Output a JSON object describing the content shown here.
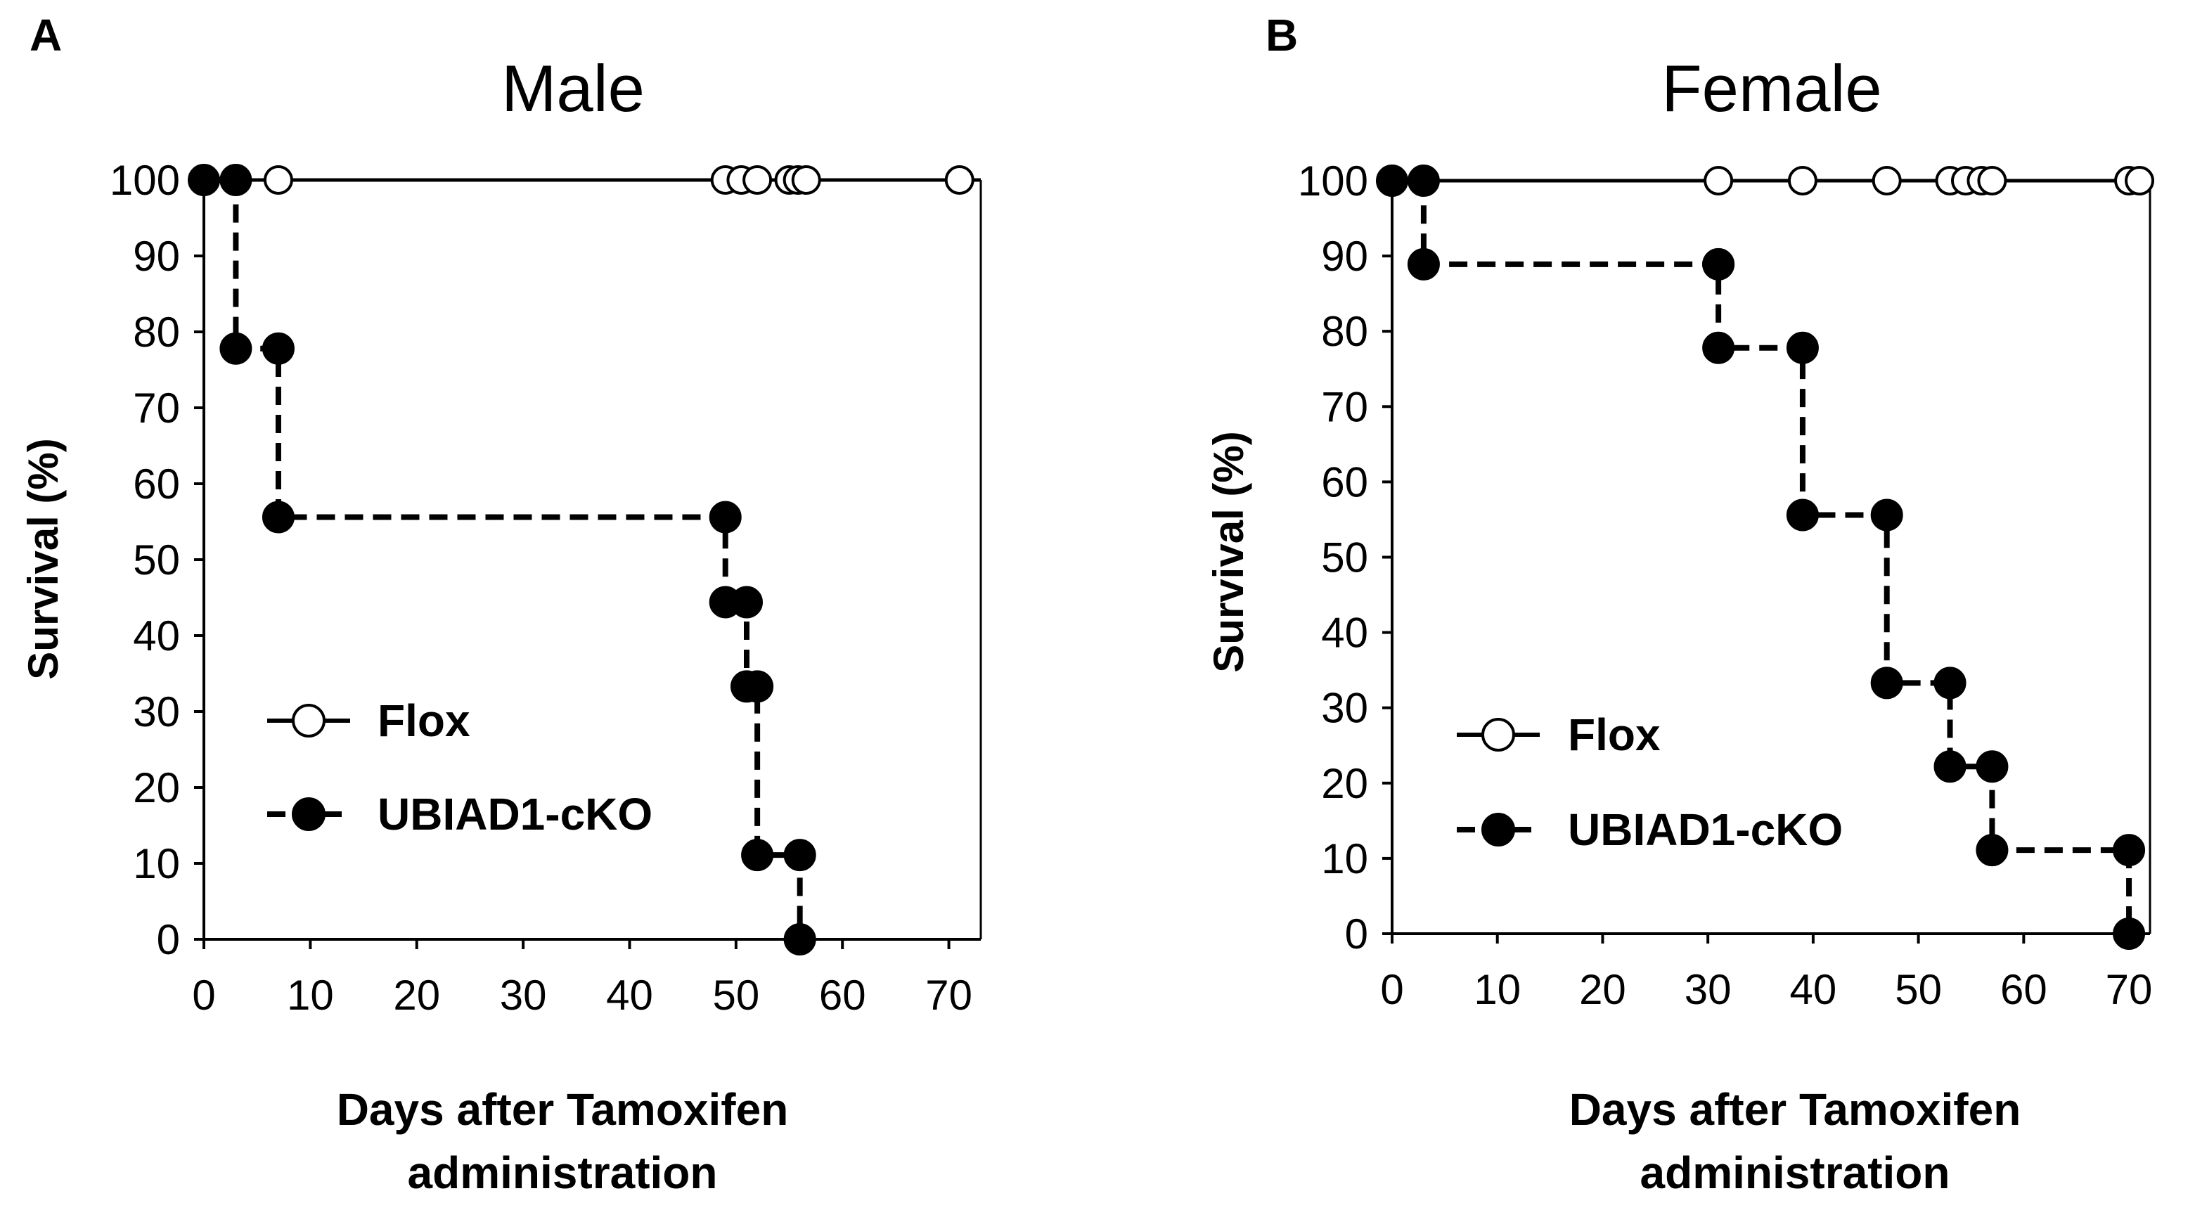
{
  "chart_data": [
    {
      "type": "line",
      "subtype": "kaplan-meier",
      "panel_label": "A",
      "title": "Male",
      "xlabel_line1": "Days after Tamoxifen",
      "xlabel_line2": "administration",
      "ylabel": "Survival (%)",
      "xlim": [
        0,
        73
      ],
      "ylim": [
        0,
        100
      ],
      "xticks": [
        0,
        10,
        20,
        30,
        40,
        50,
        60,
        70
      ],
      "yticks": [
        0,
        10,
        20,
        30,
        40,
        50,
        60,
        70,
        80,
        90,
        100
      ],
      "legend": {
        "position": "lower-left",
        "entries": [
          "Flox",
          "UBIAD1-cKO"
        ]
      },
      "series": [
        {
          "name": "Flox",
          "style": "solid",
          "marker": "open-circle",
          "line_x_end": 73,
          "steps": [
            [
              0,
              100
            ],
            [
              73,
              100
            ]
          ],
          "markers": [
            [
              0,
              100
            ],
            [
              3,
              100
            ],
            [
              7,
              100
            ],
            [
              49,
              100
            ],
            [
              50.5,
              100
            ],
            [
              52,
              100
            ],
            [
              55,
              100
            ],
            [
              55.8,
              100
            ],
            [
              56.6,
              100
            ],
            [
              71,
              100
            ]
          ]
        },
        {
          "name": "UBIAD1-cKO",
          "style": "dashed",
          "marker": "filled-circle",
          "steps": [
            [
              0,
              100
            ],
            [
              3,
              100
            ],
            [
              3,
              77.8
            ],
            [
              7,
              77.8
            ],
            [
              7,
              55.6
            ],
            [
              49,
              55.6
            ],
            [
              49,
              44.4
            ],
            [
              51,
              44.4
            ],
            [
              51,
              33.3
            ],
            [
              52,
              33.3
            ],
            [
              52,
              11.1
            ],
            [
              56,
              11.1
            ],
            [
              56,
              0
            ]
          ],
          "markers": [
            [
              0,
              100
            ],
            [
              3,
              100
            ],
            [
              3,
              77.8
            ],
            [
              7,
              77.8
            ],
            [
              7,
              55.6
            ],
            [
              49,
              55.6
            ],
            [
              49,
              44.4
            ],
            [
              51,
              44.4
            ],
            [
              51,
              33.3
            ],
            [
              52,
              33.3
            ],
            [
              52,
              11.1
            ],
            [
              56,
              11.1
            ],
            [
              56,
              0
            ]
          ]
        }
      ]
    },
    {
      "type": "line",
      "subtype": "kaplan-meier",
      "panel_label": "B",
      "title": "Female",
      "xlabel_line1": "Days after Tamoxifen",
      "xlabel_line2": "administration",
      "ylabel": "Survival (%)",
      "xlim": [
        0,
        72
      ],
      "ylim": [
        0,
        100
      ],
      "xticks": [
        0,
        10,
        20,
        30,
        40,
        50,
        60,
        70
      ],
      "yticks": [
        0,
        10,
        20,
        30,
        40,
        50,
        60,
        70,
        80,
        90,
        100
      ],
      "legend": {
        "position": "lower-left",
        "entries": [
          "Flox",
          "UBIAD1-cKO"
        ]
      },
      "series": [
        {
          "name": "Flox",
          "style": "solid",
          "marker": "open-circle",
          "line_x_end": 70,
          "steps": [
            [
              0,
              100
            ],
            [
              70,
              100
            ]
          ],
          "markers": [
            [
              0,
              100
            ],
            [
              3,
              100
            ],
            [
              31,
              100
            ],
            [
              39,
              100
            ],
            [
              47,
              100
            ],
            [
              53,
              100
            ],
            [
              54.5,
              100
            ],
            [
              56,
              100
            ],
            [
              57,
              100
            ],
            [
              70,
              100
            ],
            [
              71,
              100
            ]
          ]
        },
        {
          "name": "UBIAD1-cKO",
          "style": "dashed",
          "marker": "filled-circle",
          "steps": [
            [
              0,
              100
            ],
            [
              3,
              100
            ],
            [
              3,
              88.9
            ],
            [
              31,
              88.9
            ],
            [
              31,
              77.8
            ],
            [
              39,
              77.8
            ],
            [
              39,
              55.6
            ],
            [
              47,
              55.6
            ],
            [
              47,
              33.3
            ],
            [
              53,
              33.3
            ],
            [
              53,
              22.2
            ],
            [
              57,
              22.2
            ],
            [
              57,
              11.1
            ],
            [
              70,
              11.1
            ],
            [
              70,
              0
            ]
          ],
          "markers": [
            [
              0,
              100
            ],
            [
              3,
              100
            ],
            [
              3,
              88.9
            ],
            [
              31,
              88.9
            ],
            [
              31,
              77.8
            ],
            [
              39,
              77.8
            ],
            [
              39,
              55.6
            ],
            [
              47,
              55.6
            ],
            [
              47,
              33.3
            ],
            [
              53,
              33.3
            ],
            [
              53,
              22.2
            ],
            [
              57,
              22.2
            ],
            [
              57,
              11.1
            ],
            [
              70,
              11.1
            ],
            [
              70,
              0
            ]
          ]
        }
      ]
    }
  ]
}
